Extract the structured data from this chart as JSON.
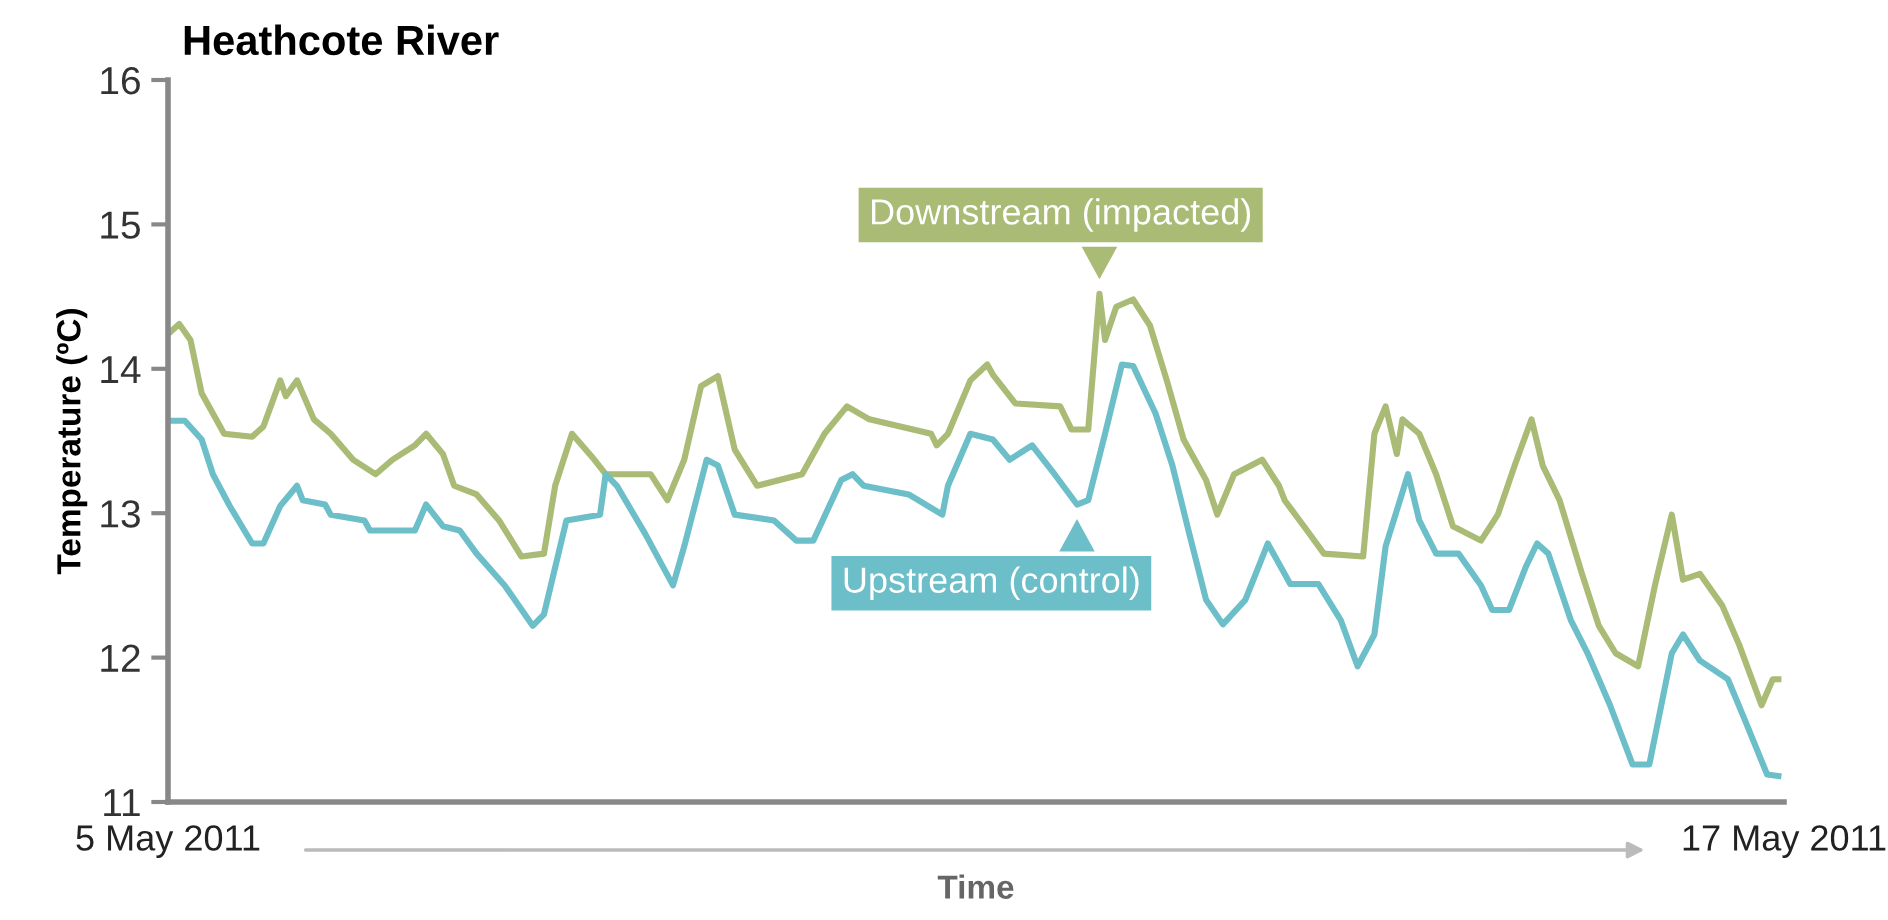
{
  "chart_data": {
    "type": "line",
    "title": "Heathcote River",
    "xlabel": "Time",
    "ylabel": "Temperature (ºC)",
    "xlim": [
      "2011-05-05",
      "2011-05-17"
    ],
    "xticks": [
      {
        "value": "2011-05-05",
        "label": "5 May 2011"
      },
      {
        "value": "2011-05-17",
        "label": "17 May 2011"
      }
    ],
    "ylim": [
      11,
      16
    ],
    "yticks": [
      11,
      12,
      13,
      14,
      15,
      16
    ],
    "grid": false,
    "marker": "none",
    "line_style": "solid",
    "series": [
      {
        "name": "Downstream (impacted)",
        "color": "#a9bb74",
        "x": [
          "2011-05-05T00:00",
          "2011-05-05T02:00",
          "2011-05-05T04:00",
          "2011-05-05T06:00",
          "2011-05-05T10:00",
          "2011-05-05T15:00",
          "2011-05-05T17:00",
          "2011-05-05T20:00",
          "2011-05-05T21:00",
          "2011-05-05T23:00",
          "2011-05-06T02:00",
          "2011-05-06T05:00",
          "2011-05-06T09:00",
          "2011-05-06T13:00",
          "2011-05-06T16:00",
          "2011-05-06T20:00",
          "2011-05-06T22:00",
          "2011-05-07T01:00",
          "2011-05-07T03:00",
          "2011-05-07T07:00",
          "2011-05-07T11:00",
          "2011-05-07T15:00",
          "2011-05-07T19:00",
          "2011-05-07T21:00",
          "2011-05-08T00:00",
          "2011-05-08T04:00",
          "2011-05-08T06:00",
          "2011-05-08T14:00",
          "2011-05-08T17:00",
          "2011-05-08T20:00",
          "2011-05-08T23:00",
          "2011-05-09T02:00",
          "2011-05-09T05:00",
          "2011-05-09T09:00",
          "2011-05-09T17:00",
          "2011-05-09T21:00",
          "2011-05-10T01:00",
          "2011-05-10T05:00",
          "2011-05-10T16:00",
          "2011-05-10T17:00",
          "2011-05-10T19:00",
          "2011-05-10T23:00",
          "2011-05-11T02:00",
          "2011-05-11T03:00",
          "2011-05-11T07:00",
          "2011-05-11T15:00",
          "2011-05-11T17:00",
          "2011-05-11T20:00",
          "2011-05-11T22:00",
          "2011-05-11T23:00",
          "2011-05-12T01:00",
          "2011-05-12T04:00",
          "2011-05-12T07:00",
          "2011-05-12T10:00",
          "2011-05-12T13:00",
          "2011-05-12T17:00",
          "2011-05-12T19:00",
          "2011-05-12T22:00",
          "2011-05-13T03:00",
          "2011-05-13T06:00",
          "2011-05-13T07:00",
          "2011-05-13T11:00",
          "2011-05-13T14:00",
          "2011-05-13T21:00",
          "2011-05-13T23:00",
          "2011-05-14T01:00",
          "2011-05-14T03:00",
          "2011-05-14T04:00",
          "2011-05-14T07:00",
          "2011-05-14T10:00",
          "2011-05-14T13:00",
          "2011-05-14T18:00",
          "2011-05-14T21:00",
          "2011-05-15T00:00",
          "2011-05-15T03:00",
          "2011-05-15T05:00",
          "2011-05-15T08:00",
          "2011-05-15T12:00",
          "2011-05-15T15:00",
          "2011-05-15T18:00",
          "2011-05-15T22:00",
          "2011-05-16T01:00",
          "2011-05-16T04:00",
          "2011-05-16T06:00",
          "2011-05-16T09:00",
          "2011-05-16T13:00",
          "2011-05-16T16:00",
          "2011-05-16T20:00",
          "2011-05-16T22:00",
          "2011-05-16T23:00"
        ],
        "values": [
          14.24,
          14.31,
          14.2,
          13.83,
          13.55,
          13.53,
          13.6,
          13.92,
          13.81,
          13.92,
          13.65,
          13.55,
          13.37,
          13.27,
          13.37,
          13.47,
          13.55,
          13.41,
          13.19,
          13.13,
          12.95,
          12.7,
          12.72,
          13.19,
          13.55,
          13.37,
          13.27,
          13.27,
          13.09,
          13.37,
          13.88,
          13.95,
          13.44,
          13.19,
          13.27,
          13.55,
          13.74,
          13.65,
          13.55,
          13.47,
          13.55,
          13.92,
          14.03,
          13.96,
          13.76,
          13.74,
          13.58,
          13.58,
          14.52,
          14.2,
          14.43,
          14.48,
          14.3,
          13.92,
          13.51,
          13.23,
          12.99,
          13.27,
          13.37,
          13.19,
          13.09,
          12.88,
          12.72,
          12.7,
          13.55,
          13.74,
          13.41,
          13.65,
          13.55,
          13.27,
          12.91,
          12.81,
          12.99,
          13.33,
          13.65,
          13.33,
          13.09,
          12.58,
          12.22,
          12.03,
          11.94,
          12.5,
          12.99,
          12.54,
          12.58,
          12.36,
          12.09,
          11.67,
          11.85,
          11.85
        ]
      },
      {
        "name": "Upstream (control)",
        "color": "#6cbfc8",
        "x": [
          "2011-05-05T00:00",
          "2011-05-05T03:00",
          "2011-05-05T06:00",
          "2011-05-05T08:00",
          "2011-05-05T11:00",
          "2011-05-05T15:00",
          "2011-05-05T17:00",
          "2011-05-05T20:00",
          "2011-05-05T23:00",
          "2011-05-06T00:00",
          "2011-05-06T04:00",
          "2011-05-06T05:00",
          "2011-05-06T11:00",
          "2011-05-06T12:00",
          "2011-05-06T20:00",
          "2011-05-06T22:00",
          "2011-05-07T01:00",
          "2011-05-07T04:00",
          "2011-05-07T07:00",
          "2011-05-07T12:00",
          "2011-05-07T17:00",
          "2011-05-07T19:00",
          "2011-05-07T23:00",
          "2011-05-08T05:00",
          "2011-05-08T06:00",
          "2011-05-08T08:00",
          "2011-05-08T13:00",
          "2011-05-08T18:00",
          "2011-05-08T20:00",
          "2011-05-09T00:00",
          "2011-05-09T02:00",
          "2011-05-09T05:00",
          "2011-05-09T12:00",
          "2011-05-09T16:00",
          "2011-05-09T19:00",
          "2011-05-10T00:00",
          "2011-05-10T02:00",
          "2011-05-10T04:00",
          "2011-05-10T12:00",
          "2011-05-10T18:00",
          "2011-05-10T19:00",
          "2011-05-10T23:00",
          "2011-05-11T03:00",
          "2011-05-11T06:00",
          "2011-05-11T10:00",
          "2011-05-11T14:00",
          "2011-05-11T18:00",
          "2011-05-11T20:00",
          "2011-05-11T23:00",
          "2011-05-12T02:00",
          "2011-05-12T04:00",
          "2011-05-12T08:00",
          "2011-05-12T11:00",
          "2011-05-12T14:00",
          "2011-05-12T17:00",
          "2011-05-12T20:00",
          "2011-05-13T00:00",
          "2011-05-13T04:00",
          "2011-05-13T08:00",
          "2011-05-13T13:00",
          "2011-05-13T17:00",
          "2011-05-13T20:00",
          "2011-05-13T23:00",
          "2011-05-14T01:00",
          "2011-05-14T05:00",
          "2011-05-14T07:00",
          "2011-05-14T10:00",
          "2011-05-14T14:00",
          "2011-05-14T18:00",
          "2011-05-14T20:00",
          "2011-05-14T23:00",
          "2011-05-15T02:00",
          "2011-05-15T04:00",
          "2011-05-15T06:00",
          "2011-05-15T10:00",
          "2011-05-15T13:00",
          "2011-05-15T17:00",
          "2011-05-15T21:00",
          "2011-05-16T00:00",
          "2011-05-16T04:00",
          "2011-05-16T06:00",
          "2011-05-16T09:00",
          "2011-05-16T14:00",
          "2011-05-16T17:00",
          "2011-05-16T21:00",
          "2011-05-16T23:00"
        ],
        "values": [
          13.64,
          13.64,
          13.51,
          13.27,
          13.05,
          12.79,
          12.79,
          13.05,
          13.19,
          13.09,
          13.06,
          12.99,
          12.95,
          12.88,
          12.88,
          13.06,
          12.91,
          12.88,
          12.72,
          12.5,
          12.22,
          12.3,
          12.95,
          12.99,
          13.27,
          13.19,
          12.86,
          12.5,
          12.77,
          13.37,
          13.33,
          12.99,
          12.95,
          12.81,
          12.81,
          13.23,
          13.27,
          13.19,
          13.13,
          12.99,
          13.19,
          13.55,
          13.51,
          13.37,
          13.47,
          13.27,
          13.06,
          13.09,
          13.55,
          14.03,
          14.02,
          13.69,
          13.33,
          12.86,
          12.4,
          12.23,
          12.4,
          12.79,
          12.51,
          12.51,
          12.26,
          11.94,
          12.16,
          12.77,
          13.27,
          12.95,
          12.72,
          12.72,
          12.5,
          12.33,
          12.33,
          12.63,
          12.79,
          12.72,
          12.26,
          12.03,
          11.67,
          11.26,
          11.26,
          12.03,
          12.16,
          11.98,
          11.85,
          11.57,
          11.19,
          11.18
        ]
      }
    ]
  }
}
